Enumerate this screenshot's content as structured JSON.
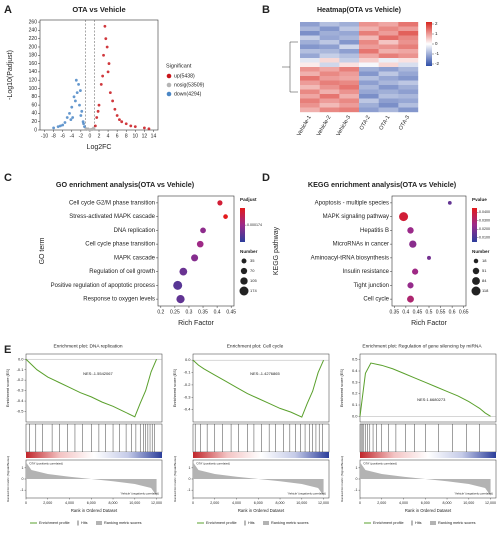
{
  "panel_labels": [
    "A",
    "B",
    "C",
    "D",
    "E"
  ],
  "chart_data": [
    {
      "type": "scatter",
      "title": "OTA vs Vehicle",
      "xlabel": "Log2FC",
      "ylabel": "-Log10(Padjust)",
      "xlim": [
        -11,
        15
      ],
      "ylim": [
        0,
        265
      ],
      "xticks": [
        -10,
        -8,
        -6,
        -4,
        -2,
        0,
        2,
        4,
        6,
        8,
        10,
        12,
        14
      ],
      "yticks": [
        0,
        20,
        40,
        60,
        80,
        100,
        120,
        140,
        160,
        180,
        200,
        220,
        240,
        260
      ],
      "vlines": [
        -1,
        1
      ],
      "legend_title": "Significant",
      "series": [
        {
          "name": "up(5438)",
          "color": "#c8151b",
          "x": [
            1.2,
            1.5,
            2,
            2.5,
            3,
            3.3,
            3.8,
            4,
            4.5,
            5,
            5.5,
            6,
            7,
            8,
            9,
            10,
            12,
            13,
            2.8,
            3.5,
            4.2,
            1.8,
            6.5
          ],
          "values": [
            10,
            30,
            60,
            110,
            180,
            250,
            200,
            140,
            90,
            70,
            50,
            35,
            20,
            15,
            10,
            8,
            5,
            3,
            130,
            220,
            160,
            45,
            25
          ]
        },
        {
          "name": "nosig(53509)",
          "color": "#b5b5b5",
          "x": [
            -0.8,
            -0.5,
            -0.2,
            0,
            0.3,
            0.6,
            0.9,
            -0.9,
            0.5,
            -0.4,
            0.8,
            0.1
          ],
          "values": [
            1,
            2,
            0.5,
            0.2,
            1.5,
            2.5,
            3,
            4,
            1,
            3,
            5,
            0.8
          ]
        },
        {
          "name": "down(4294)",
          "color": "#4a86c5",
          "x": [
            -1.2,
            -1.5,
            -2,
            -2.3,
            -2.8,
            -3,
            -3.5,
            -4,
            -4.5,
            -5,
            -5.5,
            -6,
            -7,
            -8,
            -1.8,
            -2.5,
            -3.2,
            -1.4,
            -4.2,
            -6.5,
            -2.1,
            -3.8
          ],
          "values": [
            8,
            20,
            35,
            60,
            90,
            120,
            80,
            55,
            40,
            30,
            18,
            12,
            8,
            5,
            45,
            110,
            70,
            15,
            25,
            10,
            95,
            30
          ]
        }
      ]
    },
    {
      "type": "heatmap",
      "title": "Heatmap(OTA vs Vehicle)",
      "columns": [
        "Vehicle-1",
        "Vehicle-2",
        "Vehicle-3",
        "OTA-2",
        "OTA-1",
        "OTA-3"
      ],
      "values": [
        [
          -1.2,
          -0.8,
          -1.0,
          1.1,
          0.9,
          1.4
        ],
        [
          -0.9,
          -1.3,
          -0.7,
          0.8,
          1.2,
          1.0
        ],
        [
          -1.4,
          -1.0,
          -1.1,
          1.3,
          1.0,
          1.6
        ],
        [
          -0.6,
          -1.1,
          -0.9,
          0.7,
          1.5,
          1.2
        ],
        [
          -1.0,
          -0.7,
          -1.3,
          1.2,
          0.6,
          1.1
        ],
        [
          -1.3,
          -1.2,
          -0.5,
          1.0,
          1.1,
          1.3
        ],
        [
          -0.8,
          -0.9,
          -1.2,
          1.4,
          0.8,
          0.9
        ],
        [
          -1.1,
          -0.6,
          -0.8,
          0.9,
          1.3,
          1.1
        ],
        [
          -0.3,
          0.4,
          -0.6,
          0.5,
          -0.2,
          0.3
        ],
        [
          0.2,
          -0.5,
          0.3,
          -0.1,
          0.4,
          -0.4
        ],
        [
          1.1,
          0.9,
          1.3,
          -1.0,
          -1.2,
          -0.9
        ],
        [
          0.8,
          1.2,
          1.0,
          -1.3,
          -0.7,
          -1.1
        ],
        [
          1.4,
          1.0,
          0.9,
          -0.8,
          -1.1,
          -1.3
        ],
        [
          1.0,
          1.3,
          1.2,
          -1.2,
          -0.9,
          -0.7
        ],
        [
          0.7,
          1.1,
          1.4,
          -0.9,
          -1.3,
          -1.0
        ],
        [
          1.2,
          0.8,
          1.1,
          -1.1,
          -1.0,
          -1.2
        ],
        [
          0.9,
          1.4,
          0.8,
          -1.4,
          -0.8,
          -0.9
        ],
        [
          1.3,
          1.0,
          1.2,
          -0.7,
          -1.2,
          -1.1
        ],
        [
          1.1,
          0.7,
          1.0,
          -1.0,
          -1.4,
          -0.8
        ],
        [
          0.8,
          1.2,
          1.3,
          -1.2,
          -0.9,
          -1.3
        ]
      ],
      "zlim": [
        -2.2,
        2.2
      ],
      "zticks": [
        2,
        1,
        0,
        -1,
        -2
      ],
      "color_scale": [
        "#2f4fa8",
        "#ffffff",
        "#d7261e"
      ]
    },
    {
      "type": "dot",
      "title": "GO enrichment analysis(OTA vs Vehicle)",
      "xlabel": "Rich Factor",
      "ylabel": "GO term",
      "categories": [
        "Cell cycle G2/M phase transition",
        "Stress-activated MAPK cascade",
        "DNA replication",
        "Cell cycle phase transition",
        "MAPK cascade",
        "Regulation of cell growth",
        "Positive regulation of apoptotic process",
        "Response to oxygen levels"
      ],
      "values": [
        0.41,
        0.43,
        0.35,
        0.34,
        0.32,
        0.28,
        0.26,
        0.27
      ],
      "sizes": [
        40,
        30,
        55,
        80,
        95,
        120,
        174,
        140
      ],
      "colors": [
        0.00027,
        0.0003,
        0.00016,
        0.00018,
        0.00015,
        0.00012,
        0.0001,
        0.00011
      ],
      "xlim": [
        0.19,
        0.46
      ],
      "xticks": [
        0.2,
        0.25,
        0.3,
        0.35,
        0.4,
        0.45
      ],
      "color_title": "Padjust",
      "clim": [
        5e-05,
        0.0003
      ],
      "cticks": [
        0.000174
      ],
      "color_scale": [
        "#2c3e9c",
        "#9b2a8a",
        "#e31a1c"
      ],
      "size_title": "Number",
      "size_ticks": [
        35,
        70,
        105,
        174
      ]
    },
    {
      "type": "dot",
      "title": "KEGG enrichment analysis(OTA vs Vehicle)",
      "xlabel": "Rich Factor",
      "ylabel": "KEGG pathway",
      "categories": [
        "Apoptosis - multiple species",
        "MAPK signaling pathway",
        "Hepatitis B",
        "MicroRNAs in cancer",
        "Aminoacyl-tRNA biosynthesis",
        "Insulin resistance",
        "Tight junction",
        "Cell cycle"
      ],
      "values": [
        0.59,
        0.39,
        0.42,
        0.43,
        0.5,
        0.44,
        0.42,
        0.42
      ],
      "sizes": [
        10,
        118,
        50,
        70,
        12,
        45,
        45,
        60
      ],
      "colors": [
        0.015,
        0.04,
        0.025,
        0.022,
        0.018,
        0.026,
        0.024,
        0.03
      ],
      "xlim": [
        0.34,
        0.66
      ],
      "xticks": [
        0.35,
        0.4,
        0.45,
        0.5,
        0.55,
        0.6,
        0.65
      ],
      "color_title": "Pvalue",
      "clim": [
        0.005,
        0.045
      ],
      "cticks": [
        {
          "value": 0.04,
          "label": "0.0400"
        },
        {
          "value": 0.03,
          "label": "0.0300"
        },
        {
          "value": 0.02,
          "label": "0.0200"
        },
        {
          "value": 0.01,
          "label": "0.0100"
        }
      ],
      "color_scale": [
        "#2c3e9c",
        "#9b2a8a",
        "#e31a1c"
      ],
      "size_title": "Number",
      "size_ticks": [
        18,
        51,
        84,
        118
      ]
    },
    {
      "type": "gsea",
      "title": "Enrichment plot: DNA replication",
      "nes": "NES:-1.5542067",
      "ylabel": "Enrichment score (ES)",
      "metric_ylabel": "Ranked list metric (Signal2Noise)",
      "xlabel": "Rank in Ordered Dataset",
      "x": [
        0,
        500,
        1000,
        2000,
        3000,
        4000,
        5000,
        6000,
        7000,
        8000,
        9000,
        10000,
        10500,
        11000,
        11500,
        12000
      ],
      "values": [
        0,
        -0.05,
        -0.1,
        -0.17,
        -0.22,
        -0.27,
        -0.32,
        -0.36,
        -0.41,
        -0.45,
        -0.5,
        -0.55,
        -0.42,
        -0.3,
        -0.12,
        0
      ],
      "color": "#5aa02c",
      "hits": [
        300,
        900,
        1500,
        2400,
        3100,
        3800,
        4500,
        5200,
        6000,
        6700,
        7300,
        8000,
        8600,
        9200,
        9700,
        10100,
        10500,
        10800,
        11000,
        11200,
        11400,
        11600,
        11800
      ],
      "metric_x": [
        0,
        500,
        2000,
        4000,
        6000,
        8000,
        10000,
        11500,
        12000
      ],
      "metric_values": [
        1.5,
        0.8,
        0.45,
        0.2,
        0,
        -0.2,
        -0.45,
        -0.8,
        -1.5
      ],
      "xlim": [
        0,
        12500
      ],
      "xticks": [
        0,
        {
          "value": 2000,
          "label": "2,000"
        },
        {
          "value": 4000,
          "label": "4,000"
        },
        {
          "value": 6000,
          "label": "6,000"
        },
        {
          "value": 8000,
          "label": "8,000"
        },
        {
          "value": 10000,
          "label": "10,000"
        },
        {
          "value": 12000,
          "label": "12,000"
        }
      ],
      "ylim": [
        -0.6,
        0.05
      ],
      "yticks": [
        {
          "value": 0,
          "label": "0.0"
        },
        -0.1,
        -0.2,
        -0.3,
        -0.4,
        -0.5
      ],
      "metric_ylim": [
        -1.7,
        1.7
      ],
      "metric_yticks": [
        -1,
        0,
        1
      ],
      "pos_label": "'OTA' (positively correlated)",
      "neg_label": "'Vehicle' (negatively correlated)",
      "legend": [
        "Enrichment profile",
        "Hits",
        "Ranking metric scores"
      ]
    },
    {
      "type": "gsea",
      "title": "Enrichment plot: Cell cycle",
      "nes": "NES:-1.4276865",
      "ylabel": "Enrichment score (ES)",
      "metric_ylabel": "Ranked list metric (Signal2Noise)",
      "xlabel": "Rank in Ordered Dataset",
      "x": [
        0,
        500,
        1000,
        2000,
        3000,
        4000,
        5000,
        6000,
        7000,
        8000,
        9000,
        10000,
        10500,
        11000,
        11500,
        12000
      ],
      "values": [
        0,
        -0.04,
        -0.07,
        -0.12,
        -0.17,
        -0.22,
        -0.27,
        -0.31,
        -0.35,
        -0.39,
        -0.42,
        -0.46,
        -0.35,
        -0.25,
        -0.1,
        0
      ],
      "color": "#5aa02c",
      "hits": [
        200,
        700,
        1300,
        2000,
        2700,
        3500,
        4200,
        5000,
        5600,
        6300,
        7000,
        7600,
        8300,
        8900,
        9400,
        9900,
        10300,
        10700,
        11000,
        11300,
        11600,
        11900
      ],
      "metric_x": [
        0,
        500,
        2000,
        4000,
        6000,
        8000,
        10000,
        11500,
        12000
      ],
      "metric_values": [
        1.5,
        0.8,
        0.45,
        0.2,
        0,
        -0.2,
        -0.45,
        -0.8,
        -1.5
      ],
      "xlim": [
        0,
        12500
      ],
      "xticks": [
        0,
        {
          "value": 2000,
          "label": "2,000"
        },
        {
          "value": 4000,
          "label": "4,000"
        },
        {
          "value": 6000,
          "label": "6,000"
        },
        {
          "value": 8000,
          "label": "8,000"
        },
        {
          "value": 10000,
          "label": "10,000"
        },
        {
          "value": 12000,
          "label": "12,000"
        }
      ],
      "ylim": [
        -0.5,
        0.05
      ],
      "yticks": [
        {
          "value": 0,
          "label": "0.0"
        },
        -0.1,
        -0.2,
        -0.3,
        -0.4
      ],
      "metric_ylim": [
        -1.7,
        1.7
      ],
      "metric_yticks": [
        -1,
        0,
        1
      ],
      "pos_label": "'OTA' (positively correlated)",
      "neg_label": "'Vehicle' (negatively correlated)",
      "legend": [
        "Enrichment profile",
        "Hits",
        "Ranking metric scores"
      ]
    },
    {
      "type": "gsea",
      "title": "Enrichment plot: Regulation of gene silencing by miRNA",
      "nes": "NES:1.6680273",
      "ylabel": "Enrichment score (ES)",
      "metric_ylabel": "Ranked list metric (Signal2Noise)",
      "xlabel": "Rank in Ordered Dataset",
      "x": [
        0,
        500,
        1000,
        2000,
        3000,
        4000,
        5000,
        6000,
        7000,
        8000,
        9000,
        10000,
        10500,
        11000,
        11500,
        12000
      ],
      "values": [
        0,
        0.38,
        0.47,
        0.45,
        0.42,
        0.38,
        0.34,
        0.3,
        0.26,
        0.22,
        0.18,
        0.13,
        0.1,
        0.07,
        0.03,
        0
      ],
      "color": "#5aa02c",
      "hits": [
        100,
        200,
        350,
        500,
        700,
        900,
        1200,
        1500,
        2000,
        2600,
        3300,
        4200,
        5000,
        6000,
        7200,
        8500,
        9800,
        11000
      ],
      "metric_x": [
        0,
        500,
        2000,
        4000,
        6000,
        8000,
        10000,
        11500,
        12000
      ],
      "metric_values": [
        1.5,
        0.8,
        0.45,
        0.2,
        0,
        -0.2,
        -0.45,
        -0.8,
        -1.5
      ],
      "xlim": [
        0,
        12500
      ],
      "xticks": [
        0,
        {
          "value": 2000,
          "label": "2,000"
        },
        {
          "value": 4000,
          "label": "4,000"
        },
        {
          "value": 6000,
          "label": "6,000"
        },
        {
          "value": 8000,
          "label": "8,000"
        },
        {
          "value": 10000,
          "label": "10,000"
        },
        {
          "value": 12000,
          "label": "12,000"
        }
      ],
      "ylim": [
        -0.05,
        0.55
      ],
      "yticks": [
        {
          "value": 0,
          "label": "0.0"
        },
        0.1,
        0.2,
        0.3,
        0.4,
        0.5
      ],
      "metric_ylim": [
        -1.7,
        1.7
      ],
      "metric_yticks": [
        -1,
        0,
        1
      ],
      "pos_label": "'OTA' (positively correlated)",
      "neg_label": "'Vehicle' (negatively correlated)",
      "legend": [
        "Enrichment profile",
        "Hits",
        "Ranking metric scores"
      ]
    }
  ]
}
